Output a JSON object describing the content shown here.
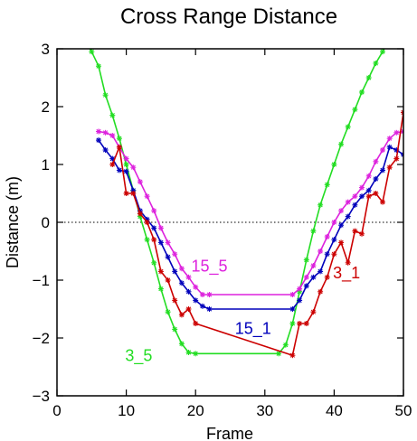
{
  "chart_data": {
    "type": "line",
    "title": "Cross Range Distance",
    "xlabel": "Frame",
    "ylabel": "Distance (m)",
    "xlim": [
      0,
      50
    ],
    "ylim": [
      -3,
      3
    ],
    "xticks": [
      0,
      10,
      20,
      30,
      40,
      50
    ],
    "yticks": [
      -3,
      -2,
      -1,
      0,
      1,
      2,
      3
    ],
    "xtick_labels": [
      "0",
      "10",
      "20",
      "30",
      "40",
      "50"
    ],
    "ytick_labels": [
      "−3",
      "−2",
      "−1",
      "0",
      "1",
      "2",
      "3"
    ],
    "zero_line": true,
    "series": [
      {
        "name": "3_5",
        "color": "#22dd22",
        "x": [
          4,
          5,
          6,
          7,
          8,
          9,
          10,
          11,
          12,
          13,
          14,
          15,
          16,
          17,
          18,
          19,
          20,
          32,
          33,
          34,
          35,
          36,
          37,
          38,
          39,
          40,
          41,
          42,
          43,
          44,
          45,
          46,
          47,
          48
        ],
        "y": [
          3.2,
          2.95,
          2.7,
          2.2,
          1.85,
          1.45,
          1.0,
          0.55,
          0.1,
          -0.3,
          -0.7,
          -1.15,
          -1.55,
          -1.85,
          -2.1,
          -2.25,
          -2.27,
          -2.27,
          -2.12,
          -1.75,
          -1.2,
          -0.65,
          -0.15,
          0.3,
          0.65,
          1.0,
          1.35,
          1.65,
          1.95,
          2.25,
          2.5,
          2.75,
          2.95,
          3.2
        ]
      },
      {
        "name": "15_5",
        "color": "#dd22dd",
        "x": [
          6,
          7,
          8,
          9,
          10,
          11,
          12,
          13,
          14,
          15,
          16,
          17,
          18,
          19,
          20,
          21,
          22,
          34,
          35,
          36,
          37,
          38,
          39,
          40,
          41,
          42,
          43,
          44,
          45,
          46,
          47,
          48,
          49,
          50
        ],
        "y": [
          1.57,
          1.55,
          1.5,
          1.3,
          1.1,
          0.95,
          0.7,
          0.45,
          0.2,
          -0.1,
          -0.35,
          -0.55,
          -0.8,
          -0.95,
          -1.12,
          -1.25,
          -1.25,
          -1.25,
          -1.15,
          -0.95,
          -0.75,
          -0.5,
          -0.25,
          0.0,
          0.2,
          0.35,
          0.45,
          0.6,
          0.8,
          1.05,
          1.25,
          1.45,
          1.55,
          1.57
        ]
      },
      {
        "name": "15_1",
        "color": "#0000bb",
        "x": [
          6,
          7,
          8,
          9,
          10,
          11,
          12,
          13,
          14,
          15,
          16,
          17,
          18,
          19,
          20,
          21,
          22,
          34,
          35,
          36,
          37,
          38,
          39,
          40,
          41,
          42,
          43,
          44,
          45,
          46,
          47,
          48,
          49,
          50
        ],
        "y": [
          1.42,
          1.25,
          1.1,
          0.9,
          0.88,
          0.55,
          0.2,
          0.05,
          -0.1,
          -0.35,
          -0.6,
          -0.85,
          -1.05,
          -1.2,
          -1.35,
          -1.45,
          -1.5,
          -1.5,
          -1.35,
          -1.1,
          -0.95,
          -0.85,
          -0.55,
          -0.3,
          -0.05,
          0.1,
          0.3,
          0.45,
          0.55,
          0.75,
          0.9,
          1.3,
          1.25,
          1.17
        ]
      },
      {
        "name": "3_1",
        "color": "#cc0000",
        "x": [
          8,
          9,
          10,
          11,
          12,
          13,
          14,
          15,
          16,
          17,
          18,
          19,
          20,
          34,
          35,
          36,
          37,
          38,
          39,
          40,
          41,
          42,
          43,
          44,
          45,
          46,
          47,
          48,
          49,
          50
        ],
        "y": [
          1.0,
          1.3,
          0.5,
          0.5,
          0.15,
          0.0,
          -0.3,
          -0.85,
          -1.0,
          -1.35,
          -1.6,
          -1.5,
          -1.75,
          -2.3,
          -1.75,
          -1.75,
          -1.55,
          -1.2,
          -0.95,
          -0.55,
          -0.35,
          -0.7,
          -0.15,
          -0.2,
          0.45,
          0.5,
          0.35,
          0.95,
          1.1,
          1.9
        ]
      }
    ],
    "series_labels": [
      {
        "text": "15_5",
        "x": 22,
        "y": -0.85,
        "color": "#dd22dd"
      },
      {
        "text": "15_1",
        "x": 28.3,
        "y": -1.93,
        "color": "#0000bb"
      },
      {
        "text": "3_5",
        "x": 11.8,
        "y": -2.4,
        "color": "#22dd22"
      },
      {
        "text": "3_1",
        "x": 41.8,
        "y": -0.97,
        "color": "#cc0000"
      }
    ]
  }
}
